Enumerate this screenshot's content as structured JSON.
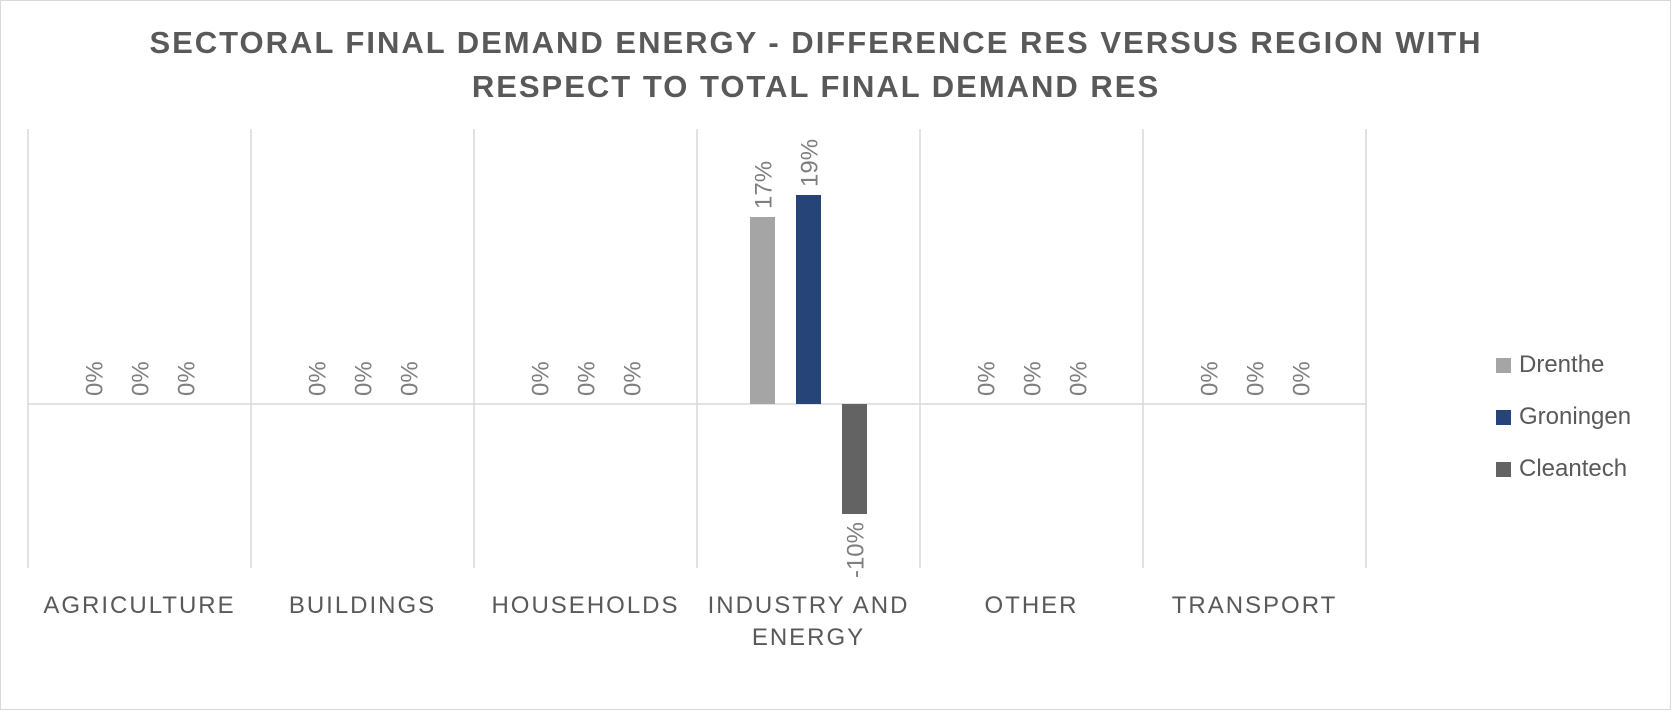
{
  "chart_data": {
    "type": "bar",
    "title_lines": [
      "SECTORAL FINAL DEMAND ENERGY - DIFFERENCE RES VERSUS REGION WITH",
      "RESPECT TO TOTAL FINAL DEMAND RES"
    ],
    "categories": [
      [
        "AGRICULTURE"
      ],
      [
        "BUILDINGS"
      ],
      [
        "HOUSEHOLDS"
      ],
      [
        "INDUSTRY  AND",
        "ENERGY"
      ],
      [
        "OTHER"
      ],
      [
        "TRANSPORT"
      ]
    ],
    "series": [
      {
        "name": "Drenthe",
        "color": "#a5a5a5",
        "values": [
          0,
          0,
          0,
          0.17,
          0,
          0
        ],
        "labels": [
          "0%",
          "0%",
          "0%",
          "17%",
          "0%",
          "0%"
        ]
      },
      {
        "name": "Groningen",
        "color": "#264478",
        "values": [
          0,
          0,
          0,
          0.19,
          0,
          0
        ],
        "labels": [
          "0%",
          "0%",
          "0%",
          "19%",
          "0%",
          "0%"
        ]
      },
      {
        "name": "Cleantech",
        "color": "#636363",
        "values": [
          0,
          0,
          0,
          -0.1,
          0,
          0
        ],
        "labels": [
          "0%",
          "0%",
          "0%",
          "-10%",
          "0%",
          "0%"
        ]
      }
    ],
    "ylim": [
      -0.15,
      0.25
    ],
    "legend_position": "right",
    "gridlines": "vertical category separators",
    "label_color": "#7f7f7f",
    "axis_color": "#d9d9d9"
  }
}
